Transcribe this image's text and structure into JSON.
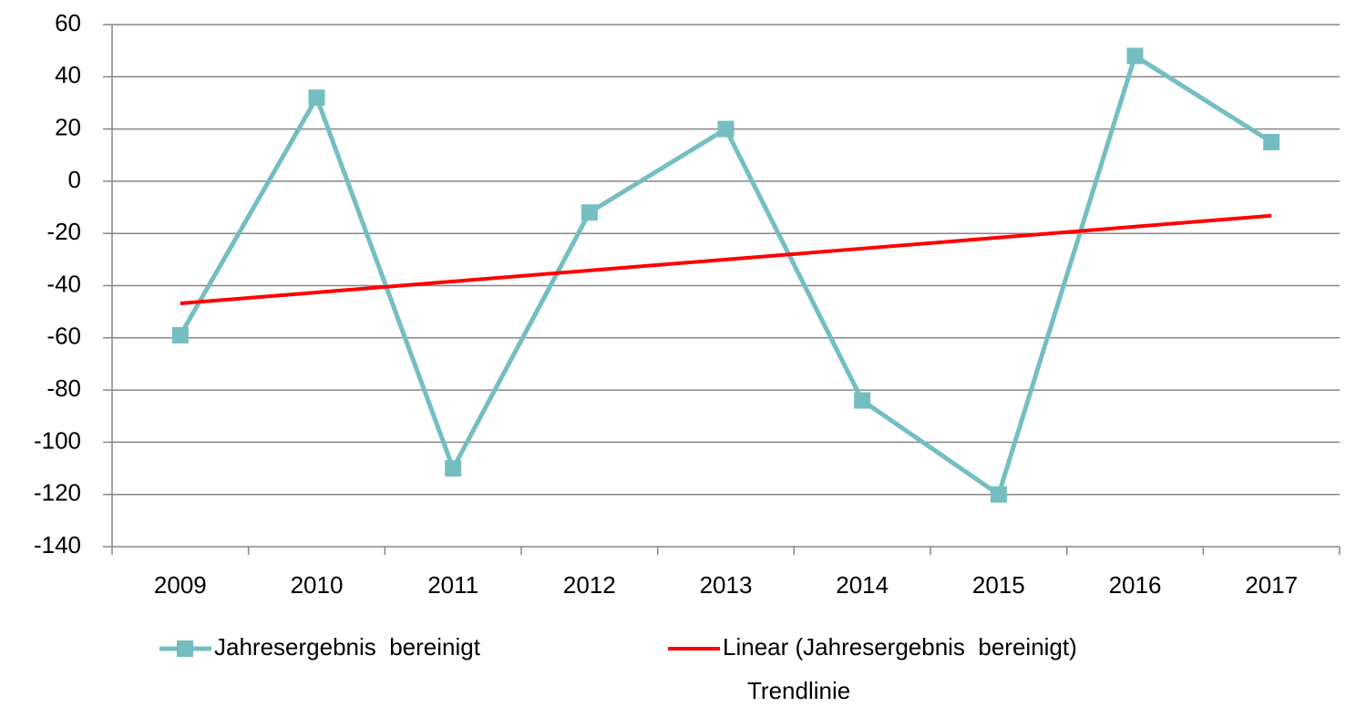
{
  "chart_data": {
    "type": "line",
    "categories": [
      "2009",
      "2010",
      "2011",
      "2012",
      "2013",
      "2014",
      "2015",
      "2016",
      "2017"
    ],
    "series": [
      {
        "name": "Jahresergebnis  bereinigt",
        "color": "#74bec1",
        "marker": "square",
        "values": [
          -59,
          32,
          -110,
          -12,
          20,
          -84,
          -120,
          48,
          15
        ]
      },
      {
        "name": "Linear (Jahresergebnis  bereinigt)",
        "color": "#ff0000",
        "marker": "none",
        "values": [
          -46.8,
          -42.6,
          -38.4,
          -34.2,
          -30,
          -25.8,
          -21.6,
          -17.4,
          -13.2
        ]
      }
    ],
    "annotation": "Trendlinie",
    "annotation_color": "#ff0000",
    "ylim": [
      -140,
      60
    ],
    "yticks": [
      -140,
      -120,
      -100,
      -80,
      -60,
      -40,
      -20,
      0,
      20,
      40,
      60
    ],
    "grid": true,
    "legend": "bottom"
  }
}
